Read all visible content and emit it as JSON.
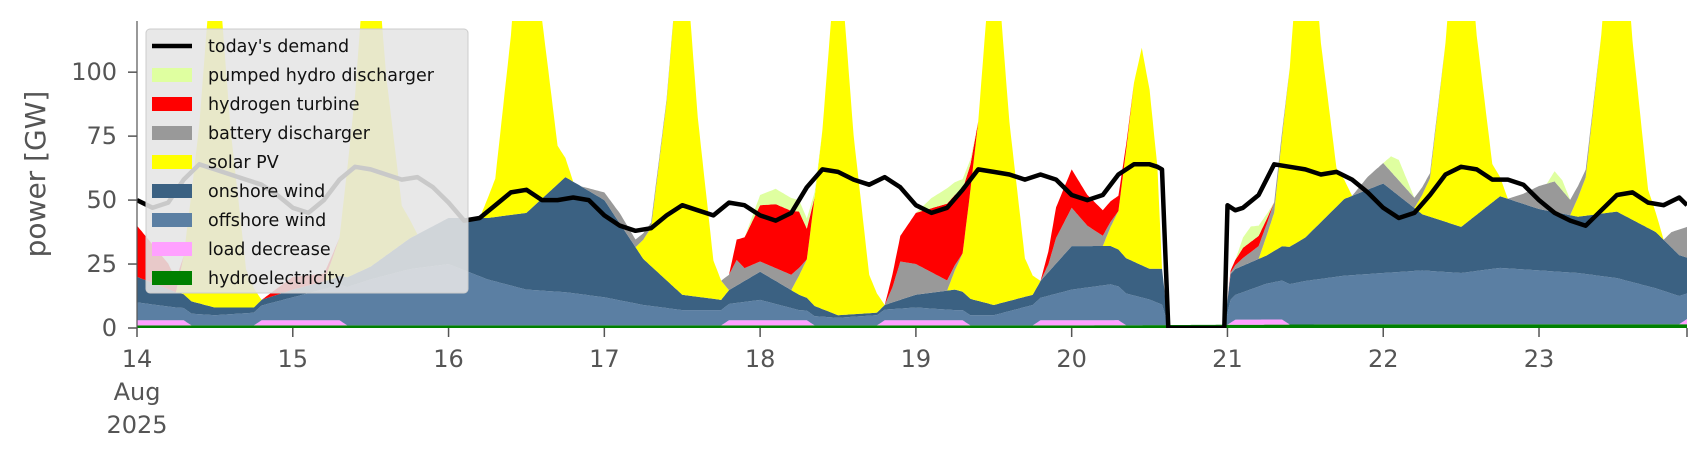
{
  "chart_data": {
    "type": "area",
    "title": "",
    "ylabel": "power [GW]",
    "xlabel": "",
    "ylim": [
      0,
      120
    ],
    "xlim": [
      14.0,
      23.95
    ],
    "y_ticks": [
      0,
      25,
      50,
      75,
      100
    ],
    "x_ticks": [
      {
        "value": 14,
        "lines": [
          "14",
          "Aug",
          "2025"
        ]
      },
      {
        "value": 15,
        "lines": [
          "15"
        ]
      },
      {
        "value": 16,
        "lines": [
          "16"
        ]
      },
      {
        "value": 17,
        "lines": [
          "17"
        ]
      },
      {
        "value": 18,
        "lines": [
          "18"
        ]
      },
      {
        "value": 19,
        "lines": [
          "19"
        ]
      },
      {
        "value": 20,
        "lines": [
          "20"
        ]
      },
      {
        "value": 21,
        "lines": [
          "21"
        ]
      },
      {
        "value": 22,
        "lines": [
          "22"
        ]
      },
      {
        "value": 23,
        "lines": [
          "23"
        ]
      }
    ],
    "grid": false,
    "legend_position": "upper-left",
    "x_unit": "day of August 2025",
    "series_stack_order": [
      "hydroelectricity",
      "load decrease",
      "offshore wind",
      "onshore wind",
      "solar PV",
      "battery discharger",
      "hydrogen turbine",
      "pumped hydro discharger"
    ],
    "series": [
      {
        "name": "hydroelectricity",
        "color": "#008000",
        "x": [
          14,
          16,
          18,
          20,
          22,
          23.95
        ],
        "y": [
          1,
          1,
          1,
          1,
          1.5,
          1.5
        ]
      },
      {
        "name": "load decrease",
        "color": "#ffa0ff",
        "x": [
          14,
          14.3,
          14.35,
          14.75,
          14.8,
          15.3,
          15.35,
          17.75,
          17.8,
          18.3,
          18.35,
          18.75,
          18.8,
          19.3,
          19.35,
          19.75,
          19.8,
          20.3,
          20.35,
          20.55,
          20.6,
          21.0,
          21.05,
          21.35,
          21.4,
          23.9,
          23.95
        ],
        "y": [
          2,
          2,
          0,
          0,
          2,
          2,
          0,
          0,
          2,
          2,
          0,
          0,
          2,
          2,
          0,
          0,
          2,
          2,
          0,
          0,
          0,
          0,
          2,
          2,
          0,
          0,
          2
        ]
      },
      {
        "name": "offshore wind",
        "color": "#5b7fa3",
        "x": [
          14,
          14.25,
          14.5,
          14.75,
          15,
          15.25,
          15.5,
          15.75,
          16,
          16.25,
          16.5,
          16.75,
          17,
          17.25,
          17.5,
          17.75,
          18,
          18.25,
          18.5,
          18.75,
          19,
          19.25,
          19.5,
          19.75,
          20,
          20.25,
          20.5,
          20.58,
          20.62,
          20.98,
          21.02,
          21.25,
          21.5,
          21.75,
          22,
          22.25,
          22.5,
          22.75,
          23,
          23.25,
          23.5,
          23.75,
          23.95
        ],
        "y": [
          7,
          5,
          4,
          5,
          9,
          13,
          18,
          22,
          24,
          18,
          14,
          13,
          11,
          8,
          6,
          6,
          8,
          4,
          3,
          4,
          5,
          4,
          4,
          8,
          12,
          14,
          10,
          8,
          0,
          0,
          9,
          14,
          17,
          19,
          20,
          21,
          20,
          22,
          21,
          20,
          18,
          14,
          10
        ]
      },
      {
        "name": "onshore wind",
        "color": "#3b6182",
        "x": [
          14,
          14.25,
          14.5,
          14.75,
          15,
          15.25,
          15.5,
          15.75,
          16,
          16.25,
          16.5,
          16.75,
          17,
          17.25,
          17.5,
          17.75,
          18,
          18.25,
          18.5,
          18.75,
          19,
          19.25,
          19.5,
          19.75,
          20,
          20.25,
          20.5,
          20.58,
          20.62,
          20.98,
          21.02,
          21.25,
          21.5,
          21.75,
          22,
          22.25,
          22.5,
          22.75,
          23,
          23.25,
          23.5,
          23.75,
          23.95
        ],
        "y": [
          10,
          6,
          3,
          2,
          3,
          3,
          5,
          12,
          18,
          24,
          30,
          45,
          38,
          18,
          6,
          4,
          11,
          6,
          1,
          1,
          5,
          8,
          4,
          4,
          17,
          15,
          12,
          14,
          0,
          0,
          10,
          11,
          17,
          30,
          35,
          22,
          18,
          28,
          24,
          22,
          26,
          22,
          14
        ]
      },
      {
        "name": "solar PV",
        "color": "#ffff00",
        "x": [
          14,
          14.25,
          14.3,
          14.4,
          14.5,
          14.6,
          14.7,
          14.8,
          15.2,
          15.3,
          15.4,
          15.5,
          15.6,
          15.7,
          15.8,
          16.2,
          16.3,
          16.4,
          16.5,
          16.6,
          16.7,
          16.8,
          17.2,
          17.3,
          17.4,
          17.5,
          17.6,
          17.7,
          17.8,
          18.2,
          18.3,
          18.4,
          18.5,
          18.6,
          18.7,
          18.8,
          19.2,
          19.3,
          19.4,
          19.5,
          19.6,
          19.7,
          19.8,
          20.2,
          20.3,
          20.4,
          20.45,
          20.5,
          20.55,
          20.58,
          20.62,
          20.98,
          21.02,
          21.2,
          21.3,
          21.4,
          21.5,
          21.6,
          21.7,
          21.8,
          22.2,
          22.3,
          22.4,
          22.5,
          22.6,
          22.7,
          22.8,
          23.2,
          23.3,
          23.4,
          23.5,
          23.6,
          23.7,
          23.8,
          23.95
        ],
        "y": [
          0,
          0,
          15,
          70,
          150,
          70,
          15,
          0,
          0,
          15,
          70,
          150,
          70,
          15,
          0,
          0,
          15,
          70,
          150,
          70,
          15,
          0,
          0,
          15,
          70,
          150,
          70,
          15,
          0,
          0,
          15,
          70,
          150,
          70,
          15,
          0,
          0,
          15,
          70,
          150,
          70,
          15,
          0,
          0,
          15,
          70,
          85,
          70,
          40,
          0,
          0,
          0,
          0,
          0,
          15,
          70,
          150,
          70,
          15,
          0,
          0,
          15,
          70,
          150,
          70,
          15,
          0,
          0,
          15,
          70,
          150,
          70,
          15,
          0,
          0
        ]
      },
      {
        "name": "battery discharger",
        "color": "#999999",
        "x": [
          14,
          14.5,
          15,
          15.5,
          16,
          16.5,
          16.85,
          17,
          17.1,
          17.2,
          17.5,
          17.75,
          17.8,
          17.85,
          17.9,
          18.0,
          18.2,
          18.3,
          18.4,
          18.8,
          18.85,
          18.9,
          19.0,
          19.1,
          19.3,
          19.4,
          19.8,
          19.85,
          19.9,
          20.0,
          20.1,
          20.3,
          20.4,
          20.6,
          21.0,
          21.1,
          21.2,
          21.3,
          21.4,
          21.6,
          21.8,
          21.9,
          22.0,
          22.1,
          22.2,
          22.4,
          22.8,
          22.9,
          23.0,
          23.1,
          23.2,
          23.4,
          23.8,
          23.85,
          23.9,
          23.95
        ],
        "y": [
          0,
          0,
          0,
          0,
          0,
          0,
          0,
          3,
          4,
          3,
          0,
          0,
          6,
          10,
          5,
          4,
          6,
          0,
          0,
          0,
          6,
          15,
          12,
          8,
          0,
          0,
          0,
          3,
          10,
          15,
          8,
          0,
          0,
          0,
          0,
          3,
          5,
          4,
          0,
          0,
          0,
          5,
          8,
          6,
          4,
          0,
          0,
          4,
          9,
          12,
          6,
          0,
          0,
          6,
          10,
          12
        ]
      },
      {
        "name": "hydrogen turbine",
        "color": "#ff0000",
        "x": [
          14,
          14.2,
          14.3,
          14.8,
          15,
          15.2,
          15.3,
          16,
          17.8,
          17.85,
          17.9,
          18.0,
          18.1,
          18.2,
          18.25,
          18.3,
          18.35,
          18.8,
          18.9,
          19.0,
          19.1,
          19.2,
          19.3,
          19.35,
          19.4,
          19.8,
          19.85,
          19.9,
          20.0,
          20.1,
          20.2,
          20.3,
          20.35,
          20.4,
          21.0,
          21.05,
          21.1,
          21.2,
          21.25,
          21.3,
          23.95
        ],
        "y": [
          20,
          10,
          0,
          0,
          5,
          3,
          0,
          0,
          0,
          8,
          12,
          22,
          25,
          25,
          22,
          12,
          0,
          0,
          10,
          20,
          25,
          30,
          25,
          10,
          0,
          0,
          5,
          12,
          15,
          12,
          10,
          6,
          2,
          0,
          0,
          2,
          4,
          4,
          2,
          0,
          0
        ]
      },
      {
        "name": "pumped hydro discharger",
        "color": "#dfffa0",
        "x": [
          14,
          17.9,
          18.0,
          18.1,
          18.3,
          18.4,
          19.0,
          19.1,
          19.2,
          19.3,
          19.4,
          21.05,
          21.1,
          21.15,
          21.3,
          22.0,
          22.05,
          22.1,
          22.2,
          23.05,
          23.1,
          23.15,
          23.2,
          23.95
        ],
        "y": [
          0,
          0,
          4,
          6,
          4,
          0,
          0,
          4,
          6,
          4,
          0,
          0,
          4,
          6,
          0,
          0,
          6,
          8,
          0,
          0,
          4,
          4,
          0,
          0
        ]
      },
      {
        "name": "today's demand",
        "color": "#000000",
        "type": "line",
        "x": [
          14,
          14.1,
          14.2,
          14.3,
          14.4,
          14.5,
          14.6,
          14.7,
          14.8,
          14.9,
          15,
          15.1,
          15.2,
          15.3,
          15.4,
          15.5,
          15.6,
          15.7,
          15.8,
          15.9,
          16,
          16.1,
          16.2,
          16.3,
          16.4,
          16.5,
          16.6,
          16.7,
          16.8,
          16.9,
          17,
          17.1,
          17.2,
          17.3,
          17.4,
          17.5,
          17.6,
          17.7,
          17.8,
          17.9,
          18,
          18.1,
          18.2,
          18.3,
          18.4,
          18.5,
          18.6,
          18.7,
          18.8,
          18.9,
          19,
          19.1,
          19.2,
          19.3,
          19.4,
          19.5,
          19.6,
          19.7,
          19.8,
          19.9,
          20,
          20.1,
          20.2,
          20.3,
          20.4,
          20.5,
          20.55,
          20.58,
          20.62,
          20.98,
          21.0,
          21.05,
          21.1,
          21.2,
          21.3,
          21.4,
          21.5,
          21.6,
          21.7,
          21.8,
          21.9,
          22,
          22.1,
          22.2,
          22.3,
          22.4,
          22.5,
          22.6,
          22.7,
          22.8,
          22.9,
          23,
          23.1,
          23.2,
          23.3,
          23.4,
          23.5,
          23.6,
          23.7,
          23.8,
          23.9,
          23.95
        ],
        "y": [
          50,
          47,
          49,
          58,
          64,
          62,
          60,
          58,
          56,
          52,
          47,
          45,
          50,
          58,
          63,
          62,
          60,
          58,
          59,
          55,
          49,
          42,
          43,
          48,
          53,
          54,
          50,
          50,
          51,
          50,
          44,
          40,
          38,
          39,
          44,
          48,
          46,
          44,
          49,
          48,
          44,
          42,
          45,
          55,
          62,
          61,
          58,
          56,
          59,
          55,
          48,
          45,
          47,
          54,
          62,
          61,
          60,
          58,
          60,
          58,
          52,
          50,
          52,
          60,
          64,
          64,
          63,
          62,
          0,
          0,
          48,
          46,
          47,
          52,
          64,
          63,
          62,
          60,
          61,
          58,
          53,
          47,
          43,
          45,
          52,
          60,
          63,
          62,
          58,
          58,
          56,
          50,
          45,
          42,
          40,
          46,
          52,
          53,
          49,
          48,
          51,
          48
        ]
      }
    ],
    "legend": [
      {
        "label": "today's demand",
        "color": "#000000",
        "kind": "line"
      },
      {
        "label": "pumped hydro discharger",
        "color": "#dfffa0",
        "kind": "patch"
      },
      {
        "label": "hydrogen turbine",
        "color": "#ff0000",
        "kind": "patch"
      },
      {
        "label": "battery discharger",
        "color": "#999999",
        "kind": "patch"
      },
      {
        "label": "solar PV",
        "color": "#ffff00",
        "kind": "patch"
      },
      {
        "label": "onshore wind",
        "color": "#3b6182",
        "kind": "patch"
      },
      {
        "label": "offshore wind",
        "color": "#5b7fa3",
        "kind": "patch"
      },
      {
        "label": "load decrease",
        "color": "#ffa0ff",
        "kind": "patch"
      },
      {
        "label": "hydroelectricity",
        "color": "#008000",
        "kind": "patch"
      }
    ]
  }
}
